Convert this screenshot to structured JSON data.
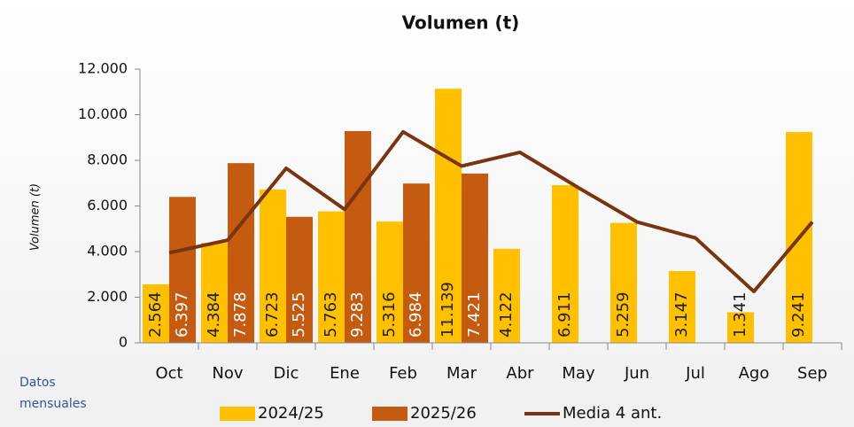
{
  "chart_data": {
    "type": "bar",
    "title": "Volumen (t)",
    "y_label": "Volumen (t)",
    "annotation": "Datos mensuales",
    "categories": [
      "Oct",
      "Nov",
      "Dic",
      "Ene",
      "Feb",
      "Mar",
      "Abr",
      "May",
      "Jun",
      "Jul",
      "Ago",
      "Sep"
    ],
    "series": [
      {
        "name": "2024/25",
        "color": "#ffc000",
        "type": "bar",
        "values": [
          2564,
          4384,
          6723,
          5763,
          5316,
          11139,
          4122,
          6911,
          5259,
          3147,
          1341,
          9241
        ],
        "value_labels": [
          "2.564",
          "4.384",
          "6.723",
          "5.763",
          "5.316",
          "11.139",
          "4.122",
          "6.911",
          "5.259",
          "3.147",
          "1.341",
          "9.241"
        ]
      },
      {
        "name": "2025/26",
        "color": "#c55a11",
        "type": "bar",
        "values": [
          6397,
          7878,
          5525,
          9283,
          6984,
          7421,
          null,
          null,
          null,
          null,
          null,
          null
        ],
        "value_labels": [
          "6.397",
          "7.878",
          "5.525",
          "9.283",
          "6.984",
          "7.421",
          null,
          null,
          null,
          null,
          null,
          null
        ]
      },
      {
        "name": "Media 4 ant.",
        "color": "#7b3410",
        "type": "line",
        "values": [
          3950,
          4500,
          7650,
          5850,
          9250,
          7750,
          8350,
          6800,
          5300,
          4600,
          2250,
          5300
        ]
      }
    ],
    "ylim": [
      0,
      12000
    ],
    "yticks": [
      0,
      {
        "value": 2000,
        "label": "2.000"
      },
      {
        "value": 4000,
        "label": "4.000"
      },
      {
        "value": 6000,
        "label": "6.000"
      },
      {
        "value": 8000,
        "label": "8.000"
      },
      {
        "value": 10000,
        "label": "10.000"
      },
      {
        "value": 12000,
        "label": "12.000"
      }
    ],
    "grid": false
  }
}
